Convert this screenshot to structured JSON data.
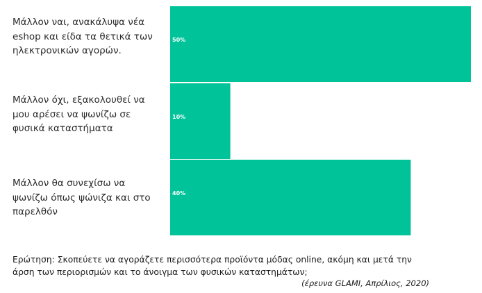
{
  "chart_data": {
    "type": "bar",
    "orientation": "horizontal",
    "categories": [
      "Μάλλον ναι, ανακάλυψα νέα eshop και είδα τα θετικά των ηλεκτρονικών αγορών.",
      "Μάλλον όχι, εξακολουθεί να μου αρέσει να ψωνίζω σε φυσικά καταστήματα",
      "Μάλλον θα συνεχίσω να ψωνίζω όπως ψώνιζα και στο παρελθόν"
    ],
    "values": [
      50,
      10,
      40
    ],
    "value_labels": [
      "50%",
      "10%",
      "40%"
    ],
    "xlim": [
      0,
      50
    ],
    "bar_color": "#00c39a",
    "label_color": "#ffffff",
    "grid": false
  },
  "caption": {
    "question": "Ερώτηση: Σκοπεύετε να αγοράζετε περισσότερα προϊόντα μόδας online, ακόμη και μετά την άρση των περιορισμών και το άνοιγμα των φυσικών καταστημάτων;",
    "source": "(έρευνα GLAMI, Απρίλιος, 2020)"
  }
}
